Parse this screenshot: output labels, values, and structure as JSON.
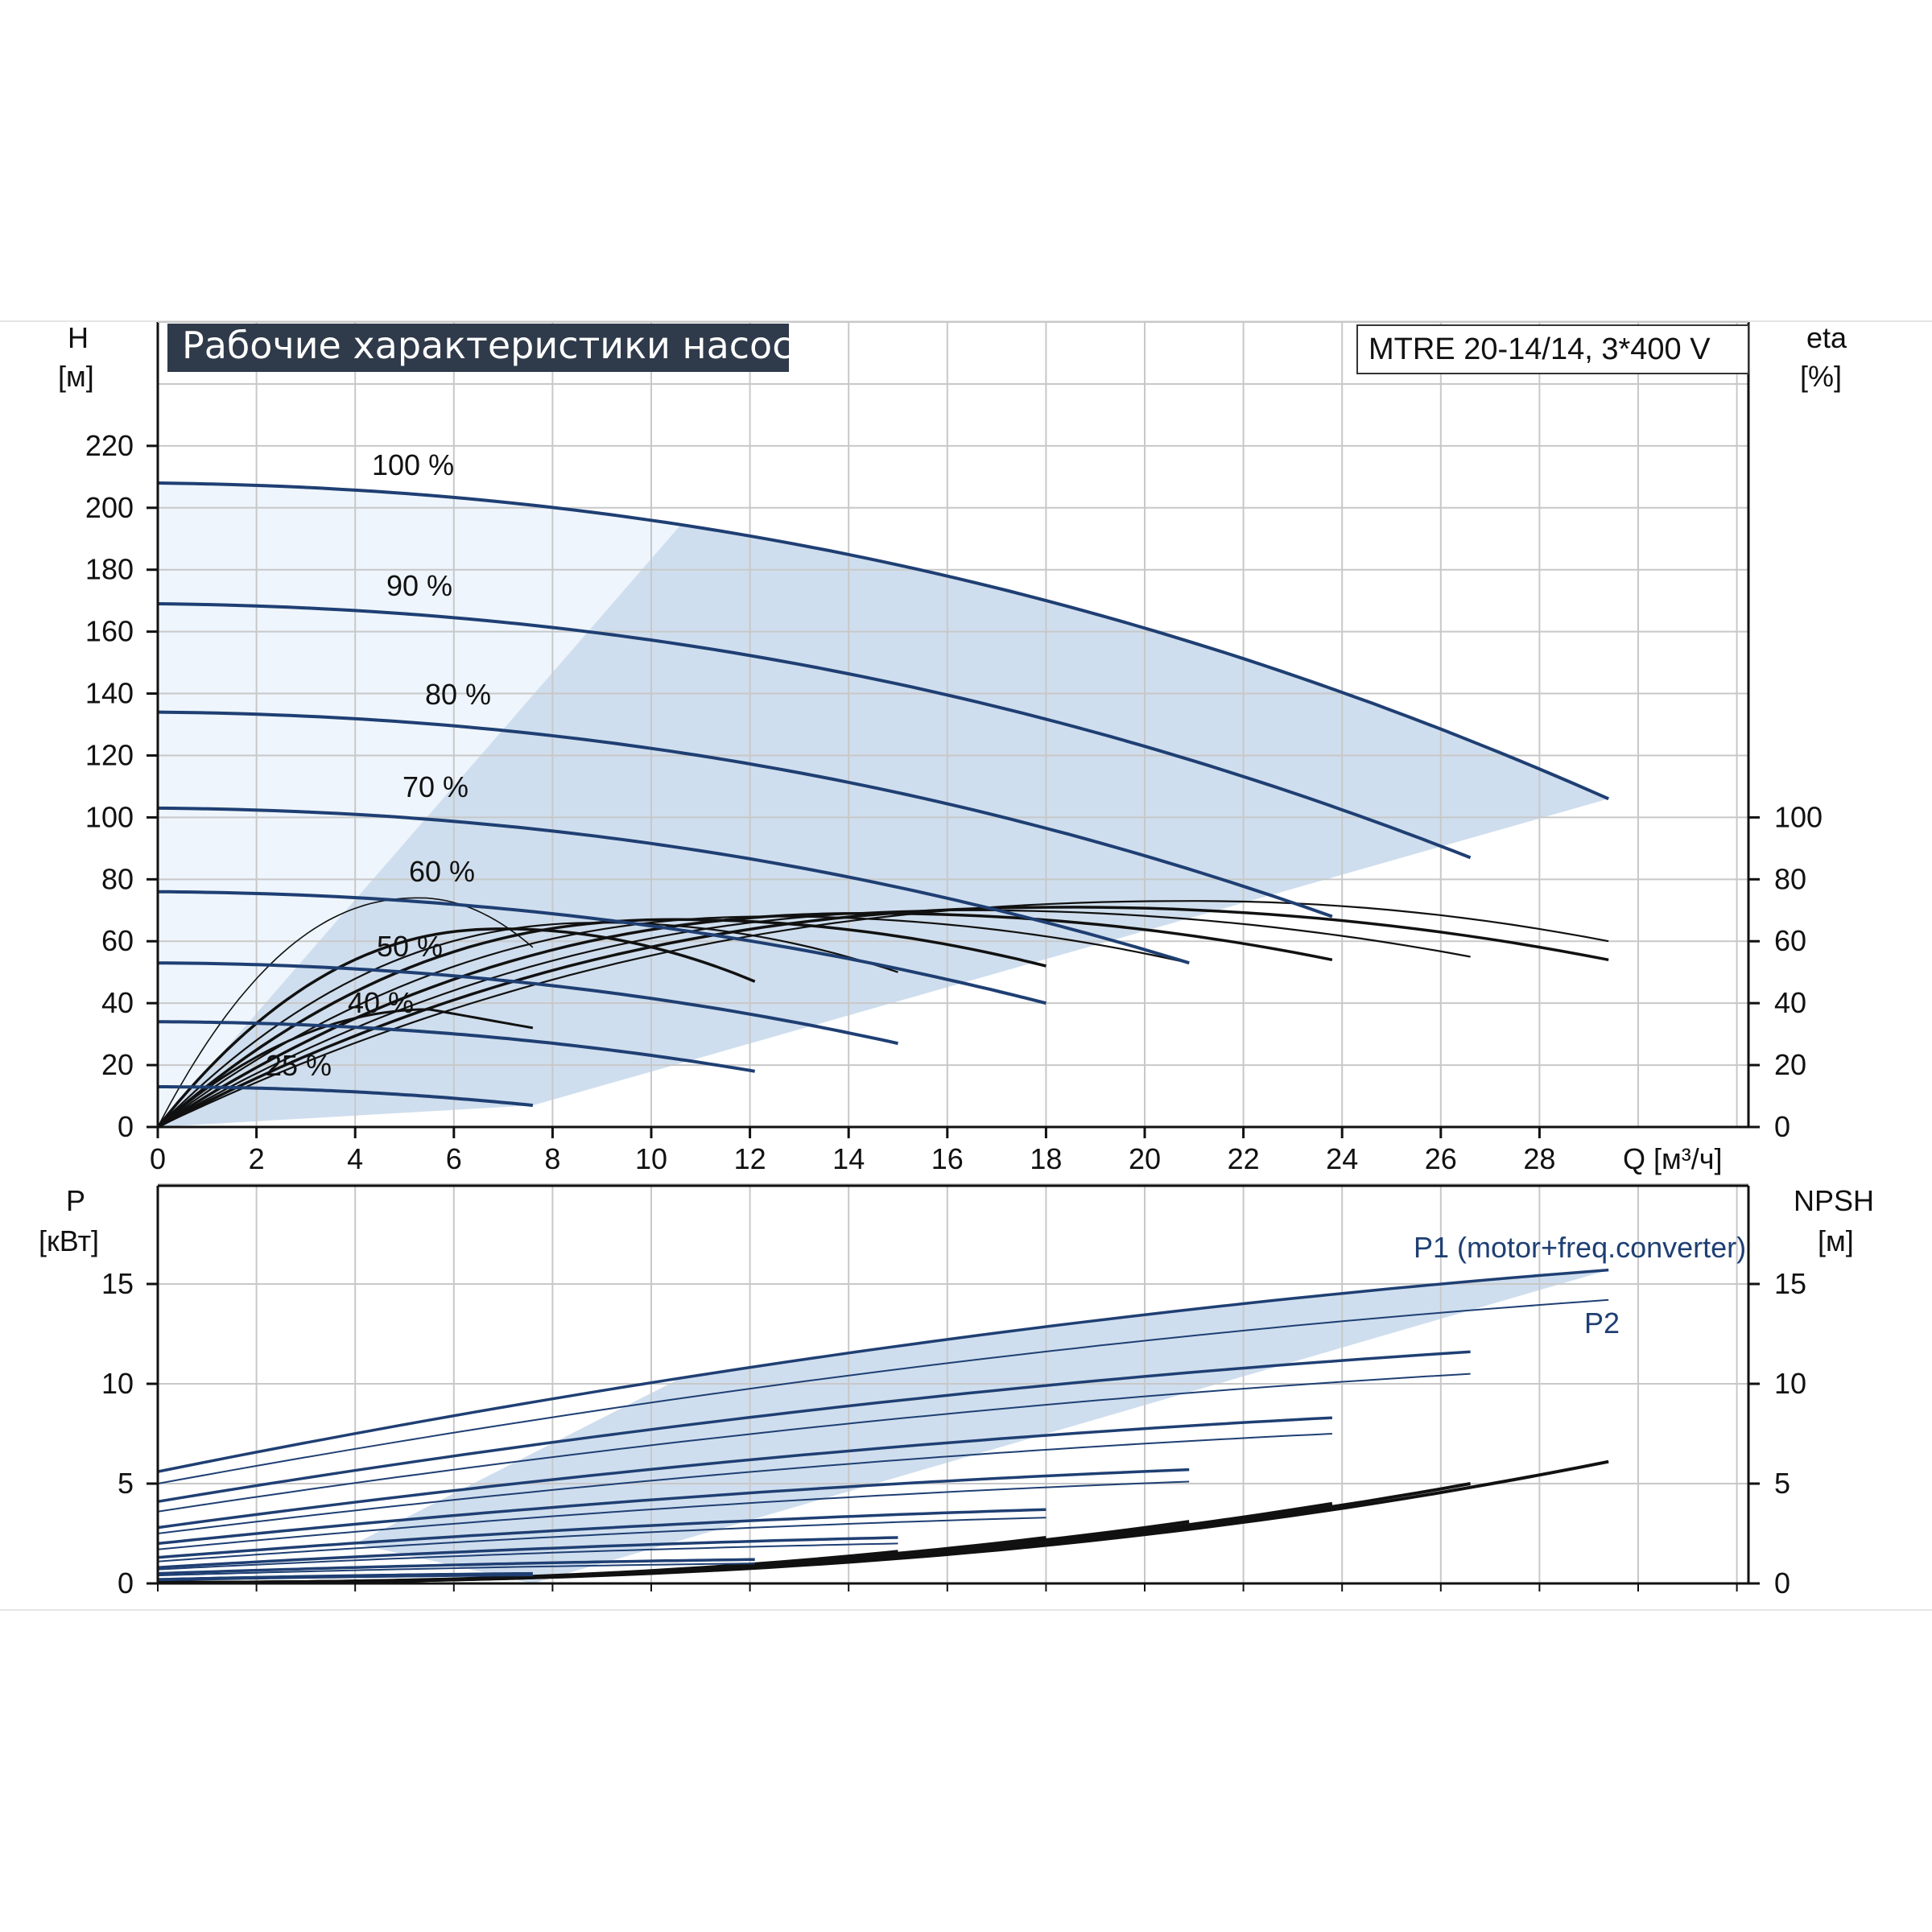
{
  "title": "Рабочие характеристики насоса",
  "model": "MTRE 20-14/14, 3*400 V",
  "colors": {
    "curve_blue": "#1f3f73",
    "fill_light": "#eef5fc",
    "fill_medium": "#cfdeee",
    "grid": "#c8c8c8",
    "black": "#111111",
    "title_bg": "#2f3a4a"
  },
  "chart_data": [
    {
      "type": "line",
      "name": "performance",
      "y_left_label": "H",
      "y_left_unit": "[м]",
      "y_right_label": "eta",
      "y_right_unit": "[%]",
      "x_label": "Q [м³/ч]",
      "x_ticks": [
        "0",
        "2",
        "4",
        "6",
        "8",
        "10",
        "12",
        "14",
        "16",
        "18",
        "20",
        "22",
        "24",
        "26",
        "28"
      ],
      "y_left_ticks": [
        "0",
        "20",
        "40",
        "60",
        "80",
        "100",
        "120",
        "140",
        "160",
        "180",
        "200",
        "220"
      ],
      "y_right_ticks": [
        "0",
        "20",
        "40",
        "60",
        "80",
        "100"
      ],
      "xlim": [
        0,
        32
      ],
      "ylim": [
        0,
        260
      ],
      "grid": true,
      "head_curves": [
        {
          "label": "100 %",
          "h0": 208,
          "h_knee": 201,
          "q_max": 29.4,
          "h_end": 106
        },
        {
          "label": "90 %",
          "h0": 169,
          "h_knee": 162,
          "q_max": 26.6,
          "h_end": 87
        },
        {
          "label": "80 %",
          "h0": 134,
          "h_knee": 128,
          "q_max": 23.8,
          "h_end": 68
        },
        {
          "label": "70 %",
          "h0": 103,
          "h_knee": 98,
          "q_max": 20.9,
          "h_end": 53
        },
        {
          "label": "60 %",
          "h0": 76,
          "h_knee": 72,
          "q_max": 18.0,
          "h_end": 40
        },
        {
          "label": "50 %",
          "h0": 53,
          "h_knee": 50,
          "q_max": 15.0,
          "h_end": 27
        },
        {
          "label": "40 %",
          "h0": 34,
          "h_knee": 32,
          "q_max": 12.1,
          "h_end": 18
        },
        {
          "label": "25 %",
          "h0": 13,
          "h_knee": 12.5,
          "q_max": 7.6,
          "h_end": 7
        }
      ],
      "efficiency_curves": [
        {
          "peak": 74,
          "q_peak": 5.3,
          "q_end": 7.6,
          "end": 58
        },
        {
          "peak": 64,
          "q_peak": 7.0,
          "q_end": 12.1,
          "end": 47
        },
        {
          "peak": 66,
          "q_peak": 9.0,
          "q_end": 15.0,
          "end": 50
        },
        {
          "peak": 67,
          "q_peak": 10.5,
          "q_end": 18.0,
          "end": 52
        },
        {
          "peak": 68,
          "q_peak": 12.5,
          "q_end": 20.9,
          "end": 53
        },
        {
          "peak": 69,
          "q_peak": 14.5,
          "q_end": 23.8,
          "end": 54
        },
        {
          "peak": 70,
          "q_peak": 16.5,
          "q_end": 26.6,
          "end": 55
        },
        {
          "peak": 71,
          "q_peak": 18.5,
          "q_end": 29.4,
          "end": 54
        },
        {
          "peak": 73,
          "q_peak": 21.0,
          "q_end": 29.4,
          "end": 60
        }
      ],
      "small_eff_curve": {
        "peak": 38,
        "q_peak": 5.5,
        "q_end": 7.6,
        "end": 32
      }
    },
    {
      "type": "line",
      "name": "power",
      "y_left_label": "P",
      "y_left_unit": "[кВт]",
      "y_right_label": "NPSH",
      "y_right_unit": "[м]",
      "y_left_ticks": [
        "0",
        "5",
        "10",
        "15"
      ],
      "y_right_ticks": [
        "0",
        "5",
        "10",
        "15"
      ],
      "xlim": [
        0,
        32
      ],
      "ylim": [
        0,
        20
      ],
      "grid": true,
      "series_labels": [
        "P1 (motor+freq.converter)",
        "P2"
      ],
      "power_curves": [
        {
          "p1_0": 5.6,
          "p1_end": 15.7,
          "p2_0": 5.0,
          "p2_end": 14.2,
          "q_max": 29.4
        },
        {
          "p1_0": 4.1,
          "p1_end": 11.6,
          "p2_0": 3.6,
          "p2_end": 10.5,
          "q_max": 26.6
        },
        {
          "p1_0": 2.8,
          "p1_end": 8.3,
          "p2_0": 2.5,
          "p2_end": 7.5,
          "q_max": 23.8
        },
        {
          "p1_0": 2.0,
          "p1_end": 5.7,
          "p2_0": 1.7,
          "p2_end": 5.1,
          "q_max": 20.9
        },
        {
          "p1_0": 1.3,
          "p1_end": 3.7,
          "p2_0": 1.1,
          "p2_end": 3.3,
          "q_max": 18.0
        },
        {
          "p1_0": 0.8,
          "p1_end": 2.3,
          "p2_0": 0.7,
          "p2_end": 2.0,
          "q_max": 15.0
        },
        {
          "p1_0": 0.5,
          "p1_end": 1.2,
          "p2_0": 0.4,
          "p2_end": 1.0,
          "q_max": 12.1
        },
        {
          "p1_0": 0.2,
          "p1_end": 0.5,
          "p2_0": 0.15,
          "p2_end": 0.4,
          "q_max": 7.6
        }
      ],
      "npsh_curves": [
        {
          "q_max": 29.4,
          "end": 6.1
        },
        {
          "q_max": 26.6,
          "end": 5.0
        },
        {
          "q_max": 23.8,
          "end": 4.0
        },
        {
          "q_max": 20.9,
          "end": 3.1
        },
        {
          "q_max": 18.0,
          "end": 2.3
        },
        {
          "q_max": 15.0,
          "end": 1.6
        }
      ]
    }
  ]
}
